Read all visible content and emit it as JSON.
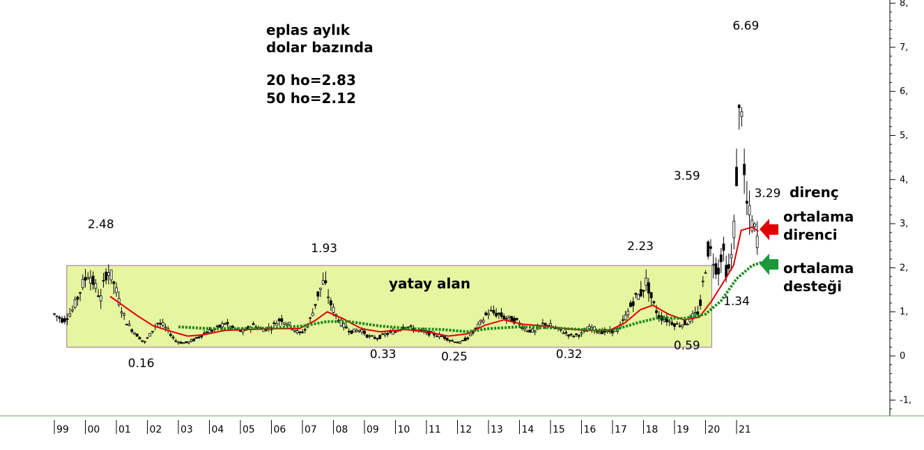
{
  "chart_data": {
    "type": "line",
    "subtype": "candlestick-monthly",
    "title_lines": [
      "eplas aylık",
      "dolar bazında"
    ],
    "ma_lines": [
      "20 ho=2.83",
      "50 ho=2.12"
    ],
    "ylim": [
      -1,
      8
    ],
    "y_ticks": [
      {
        "value": 8,
        "label": "8,"
      },
      {
        "value": 7,
        "label": "7,"
      },
      {
        "value": 6,
        "label": "6,"
      },
      {
        "value": 5,
        "label": "5,"
      },
      {
        "value": 4,
        "label": "4,"
      },
      {
        "value": 3,
        "label": "3,"
      },
      {
        "value": 2,
        "label": "2,"
      },
      {
        "value": 1,
        "label": "1,"
      },
      {
        "value": 0,
        "label": "0"
      },
      {
        "value": -1,
        "label": "-1,"
      }
    ],
    "x_ticks": [
      "99",
      "00",
      "01",
      "02",
      "03",
      "04",
      "05",
      "06",
      "07",
      "08",
      "09",
      "10",
      "11",
      "12",
      "13",
      "14",
      "15",
      "16",
      "17",
      "18",
      "19",
      "20",
      "21"
    ],
    "x_start_year": 1999,
    "colors": {
      "background": "#ffffff",
      "band_fill": "#e6f5a0",
      "band_stroke": "#9b6fa0",
      "ma20": "#e00000",
      "ma50": "#1a8a1a",
      "candle": "#000000",
      "axis": "#000000",
      "baseline": "#66aa66",
      "red_arrow": "#e00000",
      "green_arrow": "#1a9a3a"
    },
    "price_series": {
      "name": "",
      "points": [
        {
          "x": 1999.0,
          "y": 0.95
        },
        {
          "x": 1999.3,
          "y": 0.8
        },
        {
          "x": 1999.6,
          "y": 1.05
        },
        {
          "x": 1999.9,
          "y": 1.6
        },
        {
          "x": 2000.1,
          "y": 1.9
        },
        {
          "x": 2000.3,
          "y": 1.6
        },
        {
          "x": 2000.5,
          "y": 1.3
        },
        {
          "x": 2000.7,
          "y": 2.0
        },
        {
          "x": 2000.9,
          "y": 1.7
        },
        {
          "x": 2001.1,
          "y": 1.2
        },
        {
          "x": 2001.3,
          "y": 0.8
        },
        {
          "x": 2001.5,
          "y": 0.6
        },
        {
          "x": 2001.7,
          "y": 0.45
        },
        {
          "x": 2001.9,
          "y": 0.3
        },
        {
          "x": 2002.1,
          "y": 0.5
        },
        {
          "x": 2002.3,
          "y": 0.75
        },
        {
          "x": 2002.5,
          "y": 0.7
        },
        {
          "x": 2002.7,
          "y": 0.55
        },
        {
          "x": 2002.9,
          "y": 0.35
        },
        {
          "x": 2003.1,
          "y": 0.3
        },
        {
          "x": 2003.3,
          "y": 0.3
        },
        {
          "x": 2003.6,
          "y": 0.4
        },
        {
          "x": 2003.9,
          "y": 0.55
        },
        {
          "x": 2004.2,
          "y": 0.6
        },
        {
          "x": 2004.5,
          "y": 0.75
        },
        {
          "x": 2004.8,
          "y": 0.6
        },
        {
          "x": 2005.1,
          "y": 0.55
        },
        {
          "x": 2005.4,
          "y": 0.7
        },
        {
          "x": 2005.7,
          "y": 0.6
        },
        {
          "x": 2006.0,
          "y": 0.65
        },
        {
          "x": 2006.3,
          "y": 0.85
        },
        {
          "x": 2006.6,
          "y": 0.7
        },
        {
          "x": 2006.9,
          "y": 0.5
        },
        {
          "x": 2007.1,
          "y": 0.6
        },
        {
          "x": 2007.3,
          "y": 0.9
        },
        {
          "x": 2007.5,
          "y": 1.4
        },
        {
          "x": 2007.7,
          "y": 1.7
        },
        {
          "x": 2007.9,
          "y": 1.2
        },
        {
          "x": 2008.1,
          "y": 0.9
        },
        {
          "x": 2008.3,
          "y": 0.7
        },
        {
          "x": 2008.6,
          "y": 0.55
        },
        {
          "x": 2008.9,
          "y": 0.6
        },
        {
          "x": 2009.1,
          "y": 0.45
        },
        {
          "x": 2009.4,
          "y": 0.4
        },
        {
          "x": 2009.7,
          "y": 0.5
        },
        {
          "x": 2010.0,
          "y": 0.55
        },
        {
          "x": 2010.3,
          "y": 0.7
        },
        {
          "x": 2010.6,
          "y": 0.6
        },
        {
          "x": 2010.9,
          "y": 0.55
        },
        {
          "x": 2011.2,
          "y": 0.5
        },
        {
          "x": 2011.5,
          "y": 0.45
        },
        {
          "x": 2011.8,
          "y": 0.35
        },
        {
          "x": 2012.1,
          "y": 0.3
        },
        {
          "x": 2012.4,
          "y": 0.45
        },
        {
          "x": 2012.7,
          "y": 0.7
        },
        {
          "x": 2013.0,
          "y": 1.0
        },
        {
          "x": 2013.3,
          "y": 0.95
        },
        {
          "x": 2013.6,
          "y": 0.85
        },
        {
          "x": 2013.9,
          "y": 0.8
        },
        {
          "x": 2014.2,
          "y": 0.6
        },
        {
          "x": 2014.5,
          "y": 0.55
        },
        {
          "x": 2014.8,
          "y": 0.75
        },
        {
          "x": 2015.1,
          "y": 0.65
        },
        {
          "x": 2015.4,
          "y": 0.55
        },
        {
          "x": 2015.7,
          "y": 0.45
        },
        {
          "x": 2016.0,
          "y": 0.5
        },
        {
          "x": 2016.3,
          "y": 0.65
        },
        {
          "x": 2016.6,
          "y": 0.55
        },
        {
          "x": 2016.9,
          "y": 0.55
        },
        {
          "x": 2017.2,
          "y": 0.6
        },
        {
          "x": 2017.5,
          "y": 1.0
        },
        {
          "x": 2017.7,
          "y": 1.3
        },
        {
          "x": 2017.9,
          "y": 1.4
        },
        {
          "x": 2018.1,
          "y": 1.7
        },
        {
          "x": 2018.3,
          "y": 1.2
        },
        {
          "x": 2018.5,
          "y": 0.9
        },
        {
          "x": 2018.8,
          "y": 0.8
        },
        {
          "x": 2019.1,
          "y": 0.7
        },
        {
          "x": 2019.4,
          "y": 0.75
        },
        {
          "x": 2019.6,
          "y": 0.9
        },
        {
          "x": 2019.8,
          "y": 1.0
        },
        {
          "x": 2019.95,
          "y": 1.8
        },
        {
          "x": 2020.1,
          "y": 2.5
        },
        {
          "x": 2020.25,
          "y": 2.2
        },
        {
          "x": 2020.4,
          "y": 1.9
        },
        {
          "x": 2020.55,
          "y": 2.5
        },
        {
          "x": 2020.7,
          "y": 1.8
        },
        {
          "x": 2020.85,
          "y": 2.3
        },
        {
          "x": 2020.95,
          "y": 3.2
        },
        {
          "x": 2021.05,
          "y": 5.0
        },
        {
          "x": 2021.15,
          "y": 6.2
        },
        {
          "x": 2021.25,
          "y": 4.0
        },
        {
          "x": 2021.35,
          "y": 3.3
        },
        {
          "x": 2021.5,
          "y": 3.0
        },
        {
          "x": 2021.7,
          "y": 2.6
        }
      ]
    },
    "ma20_series": {
      "name": "",
      "points": [
        {
          "x": 2000.8,
          "y": 1.35
        },
        {
          "x": 2001.2,
          "y": 1.15
        },
        {
          "x": 2001.7,
          "y": 0.9
        },
        {
          "x": 2002.2,
          "y": 0.68
        },
        {
          "x": 2002.8,
          "y": 0.55
        },
        {
          "x": 2003.3,
          "y": 0.45
        },
        {
          "x": 2003.8,
          "y": 0.48
        },
        {
          "x": 2004.5,
          "y": 0.58
        },
        {
          "x": 2005.3,
          "y": 0.6
        },
        {
          "x": 2006.2,
          "y": 0.62
        },
        {
          "x": 2006.9,
          "y": 0.62
        },
        {
          "x": 2007.4,
          "y": 0.8
        },
        {
          "x": 2007.8,
          "y": 1.0
        },
        {
          "x": 2008.3,
          "y": 0.85
        },
        {
          "x": 2008.9,
          "y": 0.62
        },
        {
          "x": 2009.5,
          "y": 0.55
        },
        {
          "x": 2010.3,
          "y": 0.6
        },
        {
          "x": 2011.0,
          "y": 0.55
        },
        {
          "x": 2011.7,
          "y": 0.45
        },
        {
          "x": 2012.3,
          "y": 0.5
        },
        {
          "x": 2012.9,
          "y": 0.7
        },
        {
          "x": 2013.5,
          "y": 0.82
        },
        {
          "x": 2014.1,
          "y": 0.72
        },
        {
          "x": 2014.8,
          "y": 0.68
        },
        {
          "x": 2015.5,
          "y": 0.62
        },
        {
          "x": 2016.2,
          "y": 0.58
        },
        {
          "x": 2016.9,
          "y": 0.58
        },
        {
          "x": 2017.4,
          "y": 0.75
        },
        {
          "x": 2017.9,
          "y": 1.05
        },
        {
          "x": 2018.3,
          "y": 1.15
        },
        {
          "x": 2018.8,
          "y": 0.95
        },
        {
          "x": 2019.3,
          "y": 0.82
        },
        {
          "x": 2019.8,
          "y": 0.88
        },
        {
          "x": 2020.2,
          "y": 1.25
        },
        {
          "x": 2020.6,
          "y": 1.7
        },
        {
          "x": 2020.9,
          "y": 2.05
        },
        {
          "x": 2021.15,
          "y": 2.85
        },
        {
          "x": 2021.5,
          "y": 2.92
        },
        {
          "x": 2021.7,
          "y": 2.83
        }
      ]
    },
    "ma50_series": {
      "name": "",
      "points": [
        {
          "x": 2003.0,
          "y": 0.66
        },
        {
          "x": 2004.0,
          "y": 0.62
        },
        {
          "x": 2005.0,
          "y": 0.62
        },
        {
          "x": 2006.0,
          "y": 0.63
        },
        {
          "x": 2007.0,
          "y": 0.68
        },
        {
          "x": 2007.8,
          "y": 0.78
        },
        {
          "x": 2008.5,
          "y": 0.78
        },
        {
          "x": 2009.5,
          "y": 0.68
        },
        {
          "x": 2010.5,
          "y": 0.62
        },
        {
          "x": 2011.5,
          "y": 0.6
        },
        {
          "x": 2012.3,
          "y": 0.55
        },
        {
          "x": 2013.0,
          "y": 0.62
        },
        {
          "x": 2014.0,
          "y": 0.66
        },
        {
          "x": 2015.0,
          "y": 0.64
        },
        {
          "x": 2016.0,
          "y": 0.6
        },
        {
          "x": 2017.0,
          "y": 0.58
        },
        {
          "x": 2017.8,
          "y": 0.75
        },
        {
          "x": 2018.5,
          "y": 0.87
        },
        {
          "x": 2019.3,
          "y": 0.85
        },
        {
          "x": 2020.0,
          "y": 0.95
        },
        {
          "x": 2020.5,
          "y": 1.25
        },
        {
          "x": 2021.0,
          "y": 1.75
        },
        {
          "x": 2021.5,
          "y": 2.05
        },
        {
          "x": 2021.8,
          "y": 2.12
        }
      ]
    },
    "band": {
      "x_start": 1999.4,
      "x_end": 2020.2,
      "y_low": 0.2,
      "y_high": 2.05,
      "label": "yatay alan"
    },
    "annotations": [
      {
        "text": "2.48",
        "x": 2000.5,
        "y": 2.9
      },
      {
        "text": "0.16",
        "x": 2001.8,
        "y": -0.25
      },
      {
        "text": "1.93",
        "x": 2007.7,
        "y": 2.35
      },
      {
        "text": "0.33",
        "x": 2009.6,
        "y": -0.05
      },
      {
        "text": "0.25",
        "x": 2011.9,
        "y": -0.1
      },
      {
        "text": "0.32",
        "x": 2015.6,
        "y": -0.05
      },
      {
        "text": "2.23",
        "x": 2017.9,
        "y": 2.4
      },
      {
        "text": "0.59",
        "x": 2019.4,
        "y": 0.15
      },
      {
        "text": "3.59",
        "x": 2019.4,
        "y": 4.0
      },
      {
        "text": "1.34",
        "x": 2021.0,
        "y": 1.15
      },
      {
        "text": "6.69",
        "x": 2021.3,
        "y": 7.4
      },
      {
        "text": "3.29",
        "x": 2022.0,
        "y": 3.6
      }
    ],
    "side_labels": {
      "direnc": "direnç",
      "red_label_1": "ortalama",
      "red_label_2": "direnci",
      "green_label_1": "ortalama",
      "green_label_2": "desteği"
    }
  }
}
